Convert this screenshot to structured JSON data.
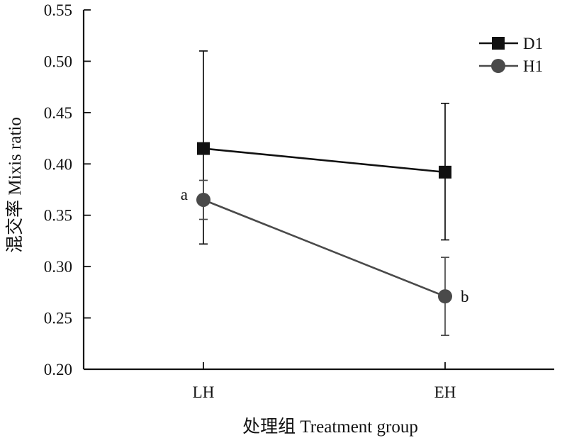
{
  "chart_data": {
    "type": "line",
    "categories": [
      "LH",
      "EH"
    ],
    "xlabel": "处理组 Treatment group",
    "ylabel": "混交率 Mixis ratio",
    "ylim": [
      0.2,
      0.55
    ],
    "yticks": [
      "0.20",
      "0.25",
      "0.30",
      "0.35",
      "0.40",
      "0.45",
      "0.50",
      "0.55"
    ],
    "grid": false,
    "legend_position": "top-right",
    "series": [
      {
        "name": "D1",
        "marker": "square",
        "color": "#111111",
        "values": [
          0.415,
          0.392
        ],
        "error_low": [
          0.322,
          0.326
        ],
        "error_high": [
          0.51,
          0.459
        ]
      },
      {
        "name": "H1",
        "marker": "circle",
        "color": "#4a4a4a",
        "values": [
          0.365,
          0.271
        ],
        "error_low": [
          0.346,
          0.233
        ],
        "error_high": [
          0.384,
          0.309
        ],
        "labels": [
          "a",
          "b"
        ]
      }
    ]
  }
}
